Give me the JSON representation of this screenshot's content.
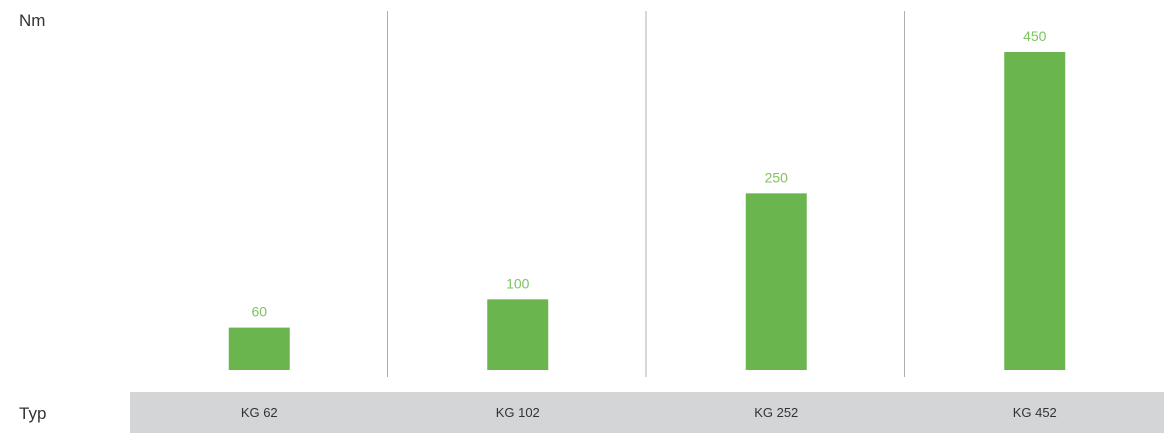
{
  "chart_data": {
    "type": "bar",
    "ylabel": "Nm",
    "xlabel": "Typ",
    "categories": [
      "KG 62",
      "KG 102",
      "KG 252",
      "KG 452"
    ],
    "values": [
      60,
      100,
      250,
      450
    ],
    "value_labels": [
      "60",
      "100",
      "250",
      "450"
    ],
    "ylim": [
      0,
      500
    ],
    "grid": false,
    "colors": {
      "bar": "#6ab54e",
      "value_label": "#7cc45f",
      "category_band": "#d4d5d7",
      "separator": "#b0b0b0"
    }
  }
}
